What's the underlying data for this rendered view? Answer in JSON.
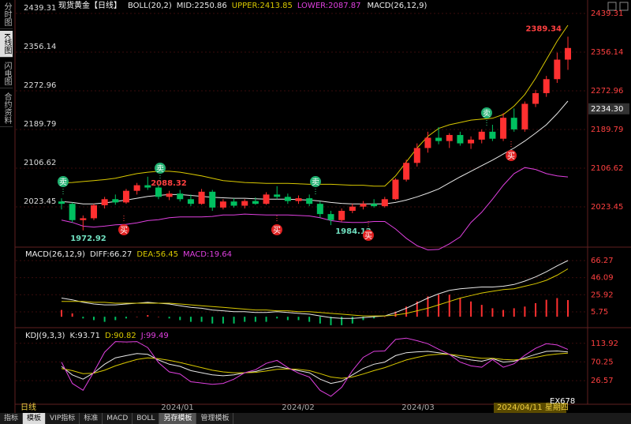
{
  "sidebar": [
    "分时图",
    "K线图",
    "闪电图",
    "合约资料"
  ],
  "toolbar": [
    "指标",
    "模板",
    "VIP指标",
    "标准",
    "MACD",
    "BOLL",
    "另存模板",
    "管理模板"
  ],
  "watermark": "EX678",
  "x_axis": {
    "period": "日线",
    "ticks": [
      "2024/01",
      "2024/02",
      "2024/03"
    ],
    "cursor": "2024/04/11 星期四"
  },
  "chart_data": [
    {
      "type": "candlestick",
      "title": "现货黄金【日线】",
      "indicator": "BOLL(20,2)",
      "extra": "MACD(26,12,9)",
      "up_color": "#ff3030",
      "down_color": "#00c060",
      "tick_color": "#ff4040",
      "ylim": [
        1942,
        2454.6
      ],
      "yticks": [
        2439.31,
        2356.14,
        2272.96,
        2189.79,
        2106.62,
        2023.45
      ],
      "open": [
        2035,
        2030,
        1995,
        1999,
        2027,
        2040,
        2033,
        2058,
        2070,
        2065,
        2045,
        2052,
        2040,
        2030,
        2056,
        2022,
        2035,
        2026,
        2036,
        2030,
        2050,
        2045,
        2036,
        2042,
        2030,
        2008,
        1995,
        2015,
        2024,
        2030,
        2025,
        2040,
        2082,
        2118,
        2150,
        2172,
        2165,
        2178,
        2160,
        2168,
        2185,
        2170,
        2215,
        2190,
        2245,
        2268,
        2298,
        2340
      ],
      "high": [
        2042,
        2033,
        2005,
        2030,
        2045,
        2050,
        2062,
        2075,
        2088.32,
        2070,
        2058,
        2060,
        2050,
        2062,
        2060,
        2040,
        2042,
        2040,
        2044,
        2055,
        2068,
        2052,
        2048,
        2050,
        2035,
        2015,
        2020,
        2030,
        2036,
        2040,
        2045,
        2085,
        2125,
        2160,
        2185,
        2195,
        2182,
        2185,
        2175,
        2190,
        2200,
        2225,
        2235,
        2250,
        2275,
        2305,
        2355,
        2389.34
      ],
      "low": [
        2018,
        1990,
        1972.92,
        1995,
        2020,
        2028,
        2030,
        2050,
        2060,
        2040,
        2038,
        2035,
        2025,
        2028,
        2015,
        2018,
        2022,
        2020,
        2028,
        2028,
        2040,
        2030,
        2030,
        2025,
        2000,
        1984.12,
        1992,
        2010,
        2018,
        2022,
        2022,
        2038,
        2078,
        2110,
        2140,
        2158,
        2150,
        2155,
        2148,
        2160,
        2165,
        2165,
        2185,
        2185,
        2238,
        2260,
        2290,
        2318
      ],
      "close": [
        2030,
        1995,
        1999,
        2027,
        2040,
        2033,
        2058,
        2070,
        2065,
        2045,
        2052,
        2040,
        2030,
        2056,
        2022,
        2035,
        2026,
        2036,
        2030,
        2050,
        2045,
        2036,
        2042,
        2030,
        2008,
        1995,
        2015,
        2024,
        2030,
        2025,
        2040,
        2082,
        2118,
        2150,
        2172,
        2165,
        2178,
        2160,
        2168,
        2185,
        2170,
        2215,
        2190,
        2245,
        2268,
        2298,
        2340,
        2365
      ],
      "series": [
        {
          "name": "MID:2250.86",
          "color": "#e8e8e8",
          "values": [
            2035,
            2033,
            2030,
            2030,
            2032,
            2035,
            2038,
            2042,
            2046,
            2048,
            2050,
            2050,
            2048,
            2046,
            2044,
            2043,
            2042,
            2042,
            2041,
            2040,
            2040,
            2040,
            2039,
            2038,
            2036,
            2033,
            2031,
            2030,
            2030,
            2030,
            2030,
            2033,
            2038,
            2045,
            2053,
            2062,
            2075,
            2088,
            2100,
            2112,
            2124,
            2137,
            2150,
            2165,
            2182,
            2200,
            2224,
            2250.86
          ]
        },
        {
          "name": "UPPER:2413.85",
          "color": "#d8c800",
          "values": [
            2075,
            2076,
            2078,
            2080,
            2082,
            2085,
            2090,
            2095,
            2098,
            2100,
            2100,
            2098,
            2094,
            2090,
            2085,
            2080,
            2078,
            2076,
            2075,
            2074,
            2074,
            2074,
            2073,
            2072,
            2072,
            2072,
            2071,
            2070,
            2070,
            2068,
            2068,
            2090,
            2120,
            2150,
            2175,
            2192,
            2200,
            2205,
            2210,
            2212,
            2214,
            2222,
            2240,
            2265,
            2300,
            2340,
            2380,
            2413.85
          ]
        },
        {
          "name": "LOWER:2087.87",
          "color": "#e040e0",
          "values": [
            1995,
            1990,
            1982,
            1980,
            1982,
            1985,
            1986,
            1989,
            1994,
            1996,
            2000,
            2002,
            2002,
            2002,
            2003,
            2006,
            2006,
            2008,
            2007,
            2006,
            2006,
            2006,
            2005,
            2004,
            2000,
            1994,
            1991,
            1990,
            1990,
            1992,
            1992,
            1976,
            1956,
            1940,
            1931,
            1932,
            1944,
            1959,
            1990,
            2012,
            2040,
            2070,
            2095,
            2108,
            2104,
            2095,
            2090,
            2087.87
          ]
        }
      ],
      "annotations": [
        2389.34,
        2088.32,
        1972.92,
        1984.12
      ],
      "last_price_label": "2234.30",
      "sell_signals": [
        "卖",
        "卖",
        "卖",
        "卖"
      ],
      "buy_signals": [
        "买",
        "买",
        "买",
        "买"
      ]
    },
    {
      "type": "macd",
      "indicator": "MACD(26,12,9)",
      "tick_color": "#ff4040",
      "bar_colors": [
        "#ff3030",
        "#00c060"
      ],
      "ylim": [
        -10.1,
        77.4
      ],
      "yticks": [
        66.27,
        46.09,
        25.92,
        5.75
      ],
      "series": [
        {
          "name": "DIFF:66.27",
          "color": "#e8e8e8",
          "style": "line",
          "values": [
            22,
            20,
            17,
            15,
            14,
            14,
            15,
            16,
            17,
            16,
            15,
            13,
            11,
            10,
            8,
            7,
            6,
            6,
            5,
            5,
            6,
            5,
            4,
            3,
            1,
            -1,
            -2,
            -2,
            -1,
            0,
            1,
            5,
            10,
            16,
            22,
            27,
            31,
            33,
            34,
            35,
            35,
            36,
            38,
            42,
            47,
            53,
            60,
            66.27
          ]
        },
        {
          "name": "DEA:56.45",
          "color": "#d8c800",
          "style": "line",
          "values": [
            18,
            18,
            18,
            17,
            17,
            16,
            16,
            16,
            16,
            16,
            16,
            15,
            14,
            13,
            12,
            11,
            10,
            9,
            8,
            8,
            7,
            7,
            6,
            6,
            5,
            4,
            3,
            2,
            1,
            1,
            1,
            2,
            4,
            7,
            10,
            14,
            18,
            22,
            25,
            28,
            30,
            32,
            33,
            36,
            39,
            43,
            49,
            56.45
          ]
        },
        {
          "name": "MACD:19.64",
          "color": "#e040e0",
          "style": "bar",
          "values": [
            8,
            4,
            -2,
            -4,
            -6,
            -4,
            -2,
            0,
            2,
            0,
            -2,
            -4,
            -6,
            -6,
            -8,
            -8,
            -8,
            -6,
            -6,
            -6,
            -2,
            -4,
            -4,
            -6,
            -8,
            -10,
            -10,
            -8,
            -4,
            -2,
            0,
            6,
            12,
            18,
            24,
            26,
            26,
            22,
            18,
            14,
            10,
            8,
            10,
            12,
            16,
            20,
            22,
            19.64
          ]
        }
      ]
    },
    {
      "type": "line",
      "indicator": "KDJ(9,3,3)",
      "tick_color": "#ff4040",
      "ylim": [
        -25,
        132
      ],
      "yticks": [
        113.92,
        70.25,
        26.57
      ],
      "series": [
        {
          "name": "K:93.71",
          "color": "#e8e8e8",
          "values": [
            60,
            40,
            30,
            45,
            65,
            80,
            85,
            90,
            88,
            75,
            65,
            60,
            50,
            45,
            40,
            38,
            40,
            45,
            48,
            55,
            60,
            55,
            50,
            45,
            30,
            20,
            25,
            40,
            55,
            65,
            70,
            85,
            92,
            94,
            95,
            92,
            88,
            80,
            75,
            72,
            78,
            70,
            72,
            80,
            88,
            95,
            96,
            93.71
          ]
        },
        {
          "name": "D:90.82",
          "color": "#d8c800",
          "values": [
            55,
            50,
            43,
            44,
            51,
            61,
            69,
            76,
            80,
            78,
            74,
            69,
            63,
            57,
            51,
            47,
            45,
            45,
            46,
            49,
            53,
            54,
            53,
            50,
            43,
            35,
            32,
            35,
            42,
            50,
            57,
            66,
            75,
            81,
            86,
            88,
            88,
            85,
            82,
            79,
            79,
            76,
            75,
            77,
            81,
            86,
            89,
            90.82
          ]
        },
        {
          "name": "J:99.49",
          "color": "#e040e0",
          "values": [
            70,
            20,
            4,
            47,
            93,
            118,
            117,
            118,
            104,
            69,
            47,
            42,
            24,
            21,
            18,
            20,
            30,
            45,
            52,
            67,
            74,
            57,
            44,
            35,
            4,
            -10,
            11,
            50,
            81,
            95,
            96,
            123,
            126,
            120,
            113,
            100,
            88,
            70,
            61,
            58,
            76,
            58,
            66,
            86,
            102,
            113,
            110,
            99.49
          ]
        }
      ]
    }
  ]
}
